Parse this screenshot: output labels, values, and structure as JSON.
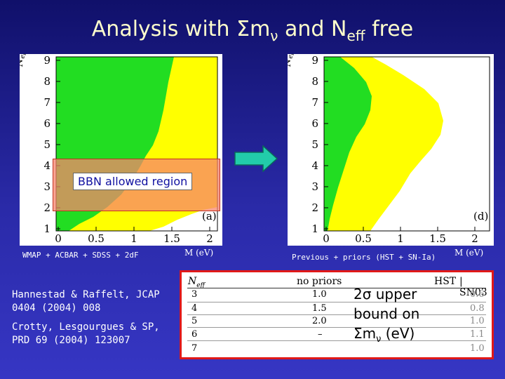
{
  "title": {
    "prefix": "Analysis with ",
    "sigma_m": "Σm",
    "nu": "ν",
    "middle": " and N",
    "sub": "eff",
    "suffix": " free"
  },
  "left_plot": {
    "ylabel": "N",
    "ylabel_sub": "eff",
    "yticks": [
      "1",
      "2",
      "3",
      "4",
      "5",
      "6",
      "7",
      "8",
      "9"
    ],
    "xticks": [
      "0",
      "0.5",
      "1",
      "1.5",
      "2"
    ],
    "xlabel": "M (eV)",
    "panel_tag": "(a)",
    "bbn_label": "BBN allowed region",
    "caption": "WMAP + ACBAR + SDSS + 2dF"
  },
  "right_plot": {
    "ylabel": "N",
    "ylabel_sub": "eff",
    "yticks": [
      "1",
      "2",
      "3",
      "4",
      "5",
      "6",
      "7",
      "8",
      "9"
    ],
    "xticks": [
      "0",
      "0.5",
      "1",
      "1.5",
      "2"
    ],
    "xlabel": "M (eV)",
    "panel_tag": "(d)",
    "caption": "Previous + priors (HST + SN-Ia)"
  },
  "references": [
    {
      "line1": "Hannestad & Raffelt, JCAP",
      "line2": "0404 (2004) 008"
    },
    {
      "line1": "Crotty, Lesgourgues & SP,",
      "line2": "PRD 69 (2004) 123007"
    }
  ],
  "table": {
    "col_neff": "N",
    "col_neff_sub": "eff",
    "col_no_priors": "no priors",
    "col_hst": "HST",
    "col_sn": "SN03",
    "rows": [
      {
        "neff": "3",
        "no_priors": "1.0",
        "sn": "0.6"
      },
      {
        "neff": "4",
        "no_priors": "1.5",
        "sn": "0.8"
      },
      {
        "neff": "5",
        "no_priors": "2.0",
        "sn": "1.0"
      },
      {
        "neff": "6",
        "no_priors": "–",
        "sn": "1.1"
      },
      {
        "neff": "7",
        "no_priors": "",
        "sn": "1.0"
      }
    ]
  },
  "bound_label": {
    "line1": "2σ upper",
    "line2": "bound on",
    "line3_sigma": "Σm",
    "line3_nu": "ν",
    "line3_unit": " (eV)"
  },
  "colors": {
    "green": "#22dd22",
    "yellow": "#ffff00",
    "bbn": "#f8846c",
    "title": "#ffffcc",
    "table_border": "#e01818"
  }
}
